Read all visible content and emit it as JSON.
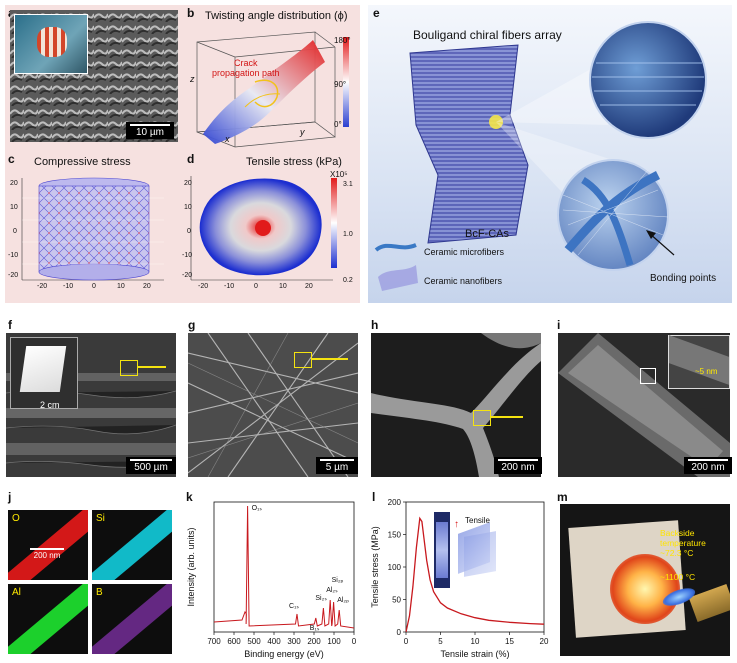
{
  "panels": {
    "a": {
      "letter": "a",
      "scale": "10 µm"
    },
    "b": {
      "letter": "b",
      "title": "Twisting angle distribution (ϕ)",
      "annotation": "Crack\npropagation path",
      "axis_z": "z",
      "axis_x": "x",
      "axis_y": "y",
      "cbar_ticks": [
        "180°",
        "90°",
        "0°"
      ]
    },
    "c": {
      "letter": "c",
      "title": "Compressive stress",
      "ticks": [
        "-20",
        "-10",
        "0",
        "10",
        "20"
      ],
      "y_ticks": [
        "20",
        "10",
        "0",
        "-10",
        "-20"
      ]
    },
    "d": {
      "letter": "d",
      "title": "Tensile stress (kPa)",
      "mult": "X10⁵",
      "cbar_ticks": [
        "3.1",
        "1.0",
        "0.2"
      ],
      "ticks": [
        "-20",
        "-10",
        "0",
        "10",
        "20"
      ],
      "y_ticks": [
        "20",
        "10",
        "0",
        "-10",
        "-20"
      ]
    },
    "e": {
      "letter": "e",
      "title": "Bouligand chiral fibers array",
      "name": "BcF-CAs",
      "legend_micro": "Ceramic microfibers",
      "legend_nano": "Ceramic nanofibers",
      "bonding": "Bonding points"
    },
    "f": {
      "letter": "f",
      "scale_inset": "2 cm",
      "scale": "500 µm"
    },
    "g": {
      "letter": "g",
      "scale": "5 µm"
    },
    "h": {
      "letter": "h",
      "scale": "200 nm"
    },
    "i": {
      "letter": "i",
      "scale": "200 nm",
      "inset_label": "~5 nm"
    },
    "j": {
      "letter": "j",
      "elements": [
        "O",
        "Si",
        "Al",
        "B"
      ],
      "scale": "200 nm"
    },
    "k": {
      "letter": "k"
    },
    "l": {
      "letter": "l",
      "inset_label": "Tensile"
    },
    "m": {
      "letter": "m",
      "backside": "Backside\ntemperature\n~72.3 °C",
      "flame": "~1100 °C"
    }
  },
  "chart_data": [
    {
      "type": "line",
      "id": "k",
      "xlabel": "Binding energy (eV)",
      "ylabel": "Intensity (arb. units)",
      "xlim": [
        700,
        0
      ],
      "x_ticks": [
        700,
        600,
        500,
        400,
        300,
        200,
        100,
        0
      ],
      "peaks": [
        {
          "label": "O₁ₛ",
          "x": 532
        },
        {
          "label": "C₁ₛ",
          "x": 285
        },
        {
          "label": "Si₂ₛ",
          "x": 153
        },
        {
          "label": "Al₂ₛ",
          "x": 119
        },
        {
          "label": "Si₂ₚ",
          "x": 102
        },
        {
          "label": "Al₂ₚ",
          "x": 74
        },
        {
          "label": "B₁ₛ",
          "x": 191
        }
      ],
      "color": "#c8191e"
    },
    {
      "type": "line",
      "id": "l",
      "xlabel": "Tensile strain (%)",
      "ylabel": "Tensile stress (MPa)",
      "xlim": [
        0,
        20
      ],
      "ylim": [
        0,
        200
      ],
      "x_ticks": [
        0,
        5,
        10,
        15,
        20
      ],
      "y_ticks": [
        0,
        50,
        100,
        150,
        200
      ],
      "x": [
        0,
        0.5,
        1.0,
        1.5,
        2.0,
        2.3,
        2.6,
        3.0,
        3.5,
        4.0,
        5.0,
        6.0,
        8.0,
        10.0,
        12.0,
        15.0,
        18.0,
        20.0
      ],
      "y": [
        0,
        25,
        70,
        130,
        175,
        170,
        145,
        110,
        80,
        62,
        45,
        37,
        28,
        22,
        18,
        15,
        13,
        12
      ],
      "color": "#c8191e"
    }
  ]
}
